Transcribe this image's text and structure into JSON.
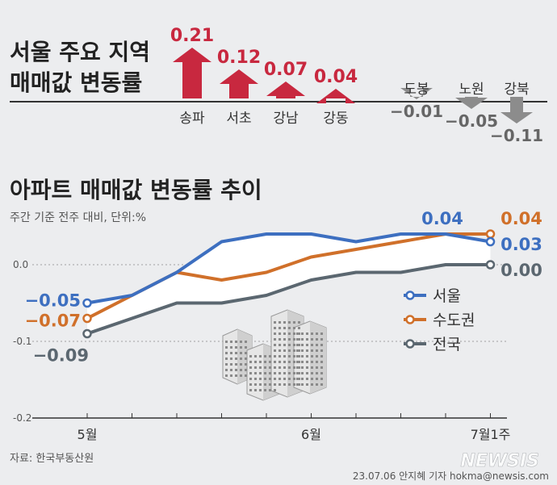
{
  "top_title_line1": "서울 주요 지역",
  "top_title_line2": "매매값 변동률",
  "top_districts": [
    {
      "name": "송파",
      "value": 0.21,
      "label": "0.21"
    },
    {
      "name": "서초",
      "value": 0.12,
      "label": "0.12"
    },
    {
      "name": "강남",
      "value": 0.07,
      "label": "0.07"
    },
    {
      "name": "강동",
      "value": 0.04,
      "label": "0.04"
    },
    {
      "name": "도봉",
      "value": -0.01,
      "label": "−0.01"
    },
    {
      "name": "노원",
      "value": -0.05,
      "label": "−0.05"
    },
    {
      "name": "강북",
      "value": -0.11,
      "label": "−0.11"
    }
  ],
  "chart_title": "아파트 매매값 변동률 추이",
  "subtitle": "주간 기준 전주 대비, 단위:%",
  "source": "자료: 한국부동산원",
  "credit": "23.07.06 안지혜 기자 hokma@newsis.com",
  "watermark": "NEWSIS",
  "colors": {
    "up": "#c8283f",
    "down": "#8c8c8c",
    "seoul": "#3d6fc0",
    "metro": "#d0702a",
    "nation": "#5b6770"
  },
  "chart_data": {
    "type": "line",
    "ylim": [
      -0.2,
      0.05
    ],
    "yticks": [
      {
        "v": 0.0,
        "label": "0.0"
      },
      {
        "v": -0.1,
        "label": "-0.1"
      },
      {
        "v": -0.2,
        "label": "-0.2"
      }
    ],
    "x_labels": [
      {
        "i": 0,
        "label": "5월"
      },
      {
        "i": 5,
        "label": "6월"
      },
      {
        "i": 9,
        "label": "7월1주"
      }
    ],
    "series": [
      {
        "name": "서울",
        "key": "seoul",
        "values": [
          -0.05,
          -0.04,
          -0.01,
          0.03,
          0.04,
          0.04,
          0.03,
          0.04,
          0.04,
          0.03
        ],
        "start_label": "−0.05",
        "end_label": "0.03",
        "peak_label": "0.04"
      },
      {
        "name": "수도권",
        "key": "metro",
        "values": [
          -0.07,
          -0.04,
          -0.01,
          -0.02,
          -0.01,
          0.01,
          0.02,
          0.03,
          0.04,
          0.04
        ],
        "start_label": "−0.07",
        "end_label": "0.04"
      },
      {
        "name": "전국",
        "key": "nation",
        "values": [
          -0.09,
          -0.07,
          -0.05,
          -0.05,
          -0.04,
          -0.02,
          -0.01,
          -0.01,
          0.0,
          0.0
        ],
        "start_label": "−0.09",
        "end_label": "0.00"
      }
    ]
  }
}
